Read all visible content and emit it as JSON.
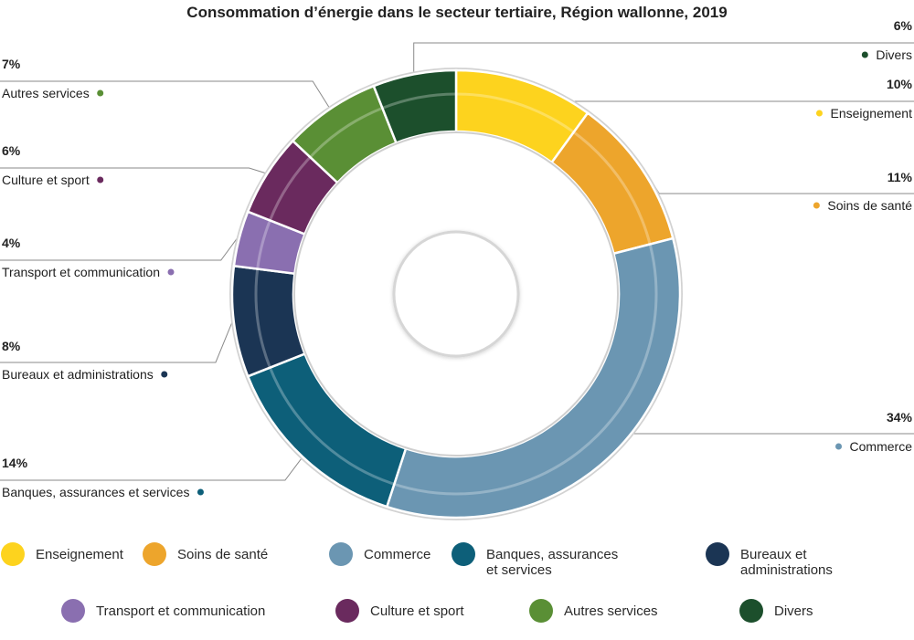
{
  "chart_data": {
    "type": "pie",
    "title": "Consommation d’énergie dans le secteur tertiaire, Région wallonne, 2019",
    "unit": "%",
    "categories": [
      "Enseignement",
      "Soins de santé",
      "Commerce",
      "Banques, assurances et services",
      "Bureaux et administrations",
      "Transport et communication",
      "Culture et sport",
      "Autres services",
      "Divers"
    ],
    "values": [
      10,
      11,
      34,
      14,
      8,
      4,
      6,
      7,
      6
    ],
    "value_labels": [
      "10%",
      "11%",
      "34%",
      "14%",
      "8%",
      "4%",
      "6%",
      "7%",
      "6%"
    ],
    "colors": [
      "#fdd31e",
      "#eda52c",
      "#6b96b2",
      "#0d5f79",
      "#1b3554",
      "#8a6fb0",
      "#6a2a5e",
      "#5a8f35",
      "#1c4f2c"
    ],
    "legend": {
      "position": "bottom",
      "entries": [
        [
          "Enseignement"
        ],
        [
          "Soins de santé"
        ],
        [
          "Commerce"
        ],
        [
          "Banques, assurances",
          "et services"
        ],
        [
          "Bureaux et",
          "administrations"
        ],
        [
          "Transport et communication"
        ],
        [
          "Culture et sport"
        ],
        [
          "Autres services"
        ],
        [
          "Divers"
        ]
      ]
    }
  }
}
